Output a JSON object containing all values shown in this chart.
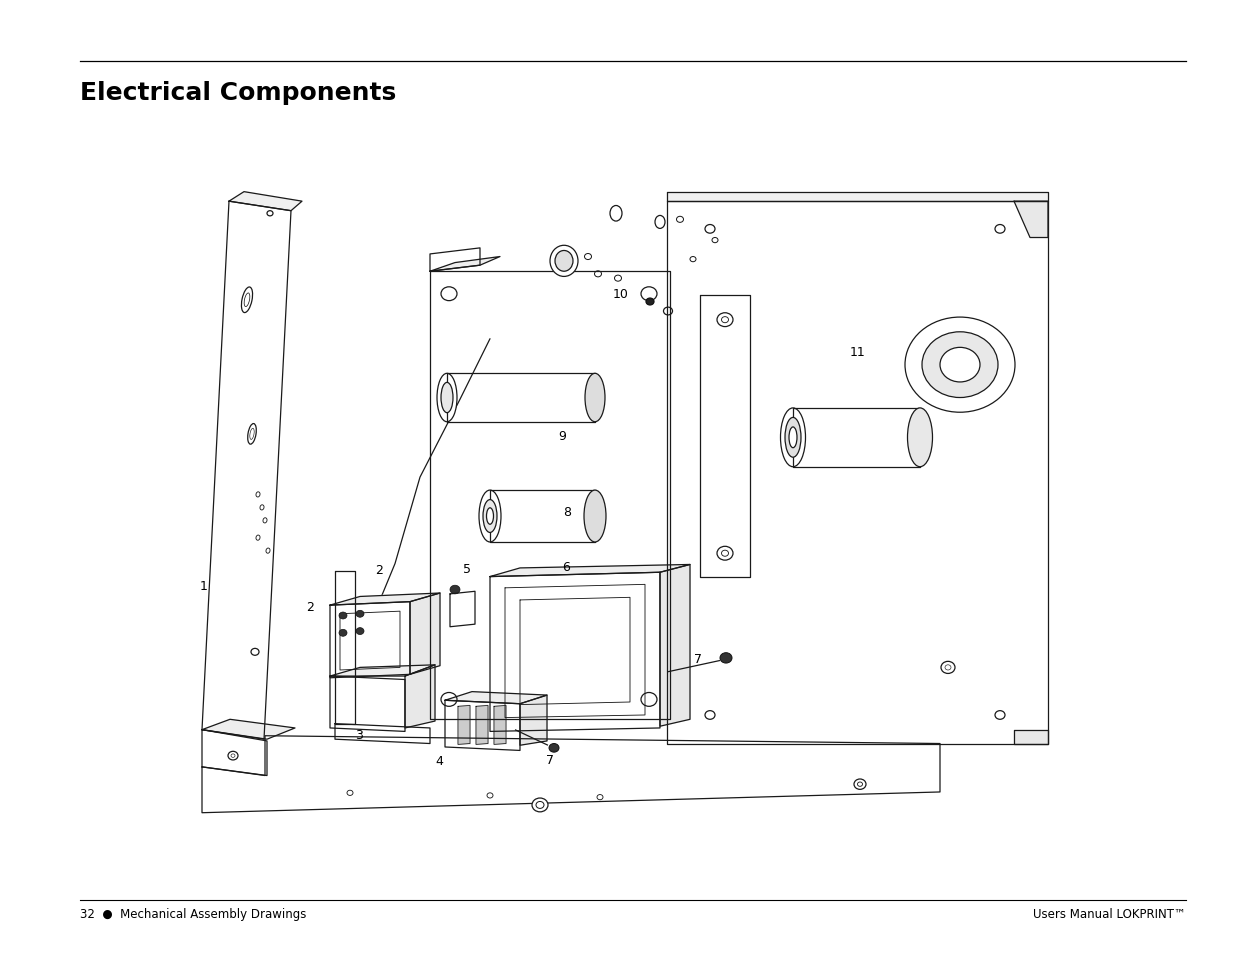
{
  "title": "Electrical Components",
  "title_fontsize": 18,
  "title_fontweight": "bold",
  "footer_left": "32  ●  Mechanical Assembly Drawings",
  "footer_right": "Users Manual LOKPRINT™",
  "footer_fontsize": 8.5,
  "background_color": "#ffffff",
  "stroke_color": "#1a1a1a",
  "fig_width": 12.35,
  "fig_height": 9.54,
  "line_width": 0.9
}
